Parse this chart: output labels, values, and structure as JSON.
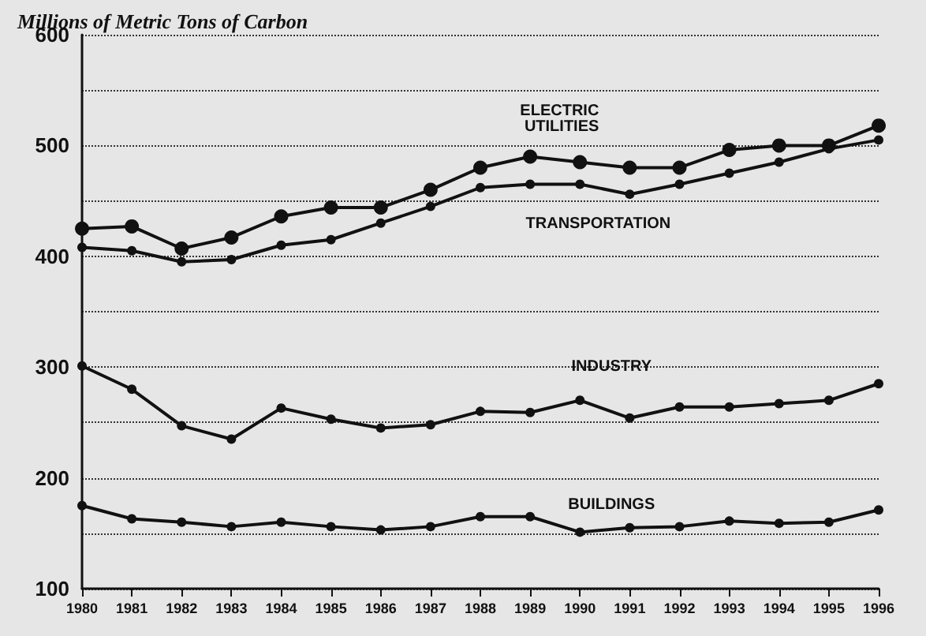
{
  "chart_data": {
    "type": "line",
    "title": "Millions of Metric Tons of Carbon",
    "categories": [
      "1980",
      "1981",
      "1982",
      "1983",
      "1984",
      "1985",
      "1986",
      "1987",
      "1988",
      "1989",
      "1990",
      "1991",
      "1992",
      "1993",
      "1994",
      "1995",
      "1996"
    ],
    "series": [
      {
        "name": "ELECTRIC UTILITIES",
        "color": "#111111",
        "values": [
          425,
          427,
          407,
          417,
          436,
          444,
          444,
          460,
          480,
          490,
          485,
          480,
          480,
          496,
          500,
          500,
          518
        ]
      },
      {
        "name": "TRANSPORTATION",
        "color": "#111111",
        "values": [
          408,
          405,
          395,
          397,
          410,
          415,
          430,
          445,
          462,
          465,
          465,
          456,
          465,
          475,
          485,
          497,
          505
        ]
      },
      {
        "name": "INDUSTRY",
        "color": "#111111",
        "values": [
          301,
          280,
          247,
          235,
          263,
          253,
          245,
          248,
          260,
          259,
          270,
          254,
          264,
          264,
          267,
          270,
          285
        ]
      },
      {
        "name": "BUILDINGS",
        "color": "#111111",
        "values": [
          175,
          163,
          160,
          156,
          160,
          156,
          153,
          156,
          165,
          165,
          151,
          155,
          156,
          161,
          159,
          160,
          171
        ]
      }
    ],
    "ylim": [
      100,
      600
    ],
    "yticks": [
      100,
      {
        "value": 150,
        "label": null
      },
      200,
      {
        "value": 250,
        "label": null
      },
      300,
      {
        "value": 350,
        "label": null
      },
      400,
      {
        "value": 450,
        "label": null
      },
      500,
      {
        "value": 550,
        "label": null
      },
      600
    ],
    "grid": "y",
    "legend": false,
    "marker": "circle",
    "line_style": "solid"
  }
}
